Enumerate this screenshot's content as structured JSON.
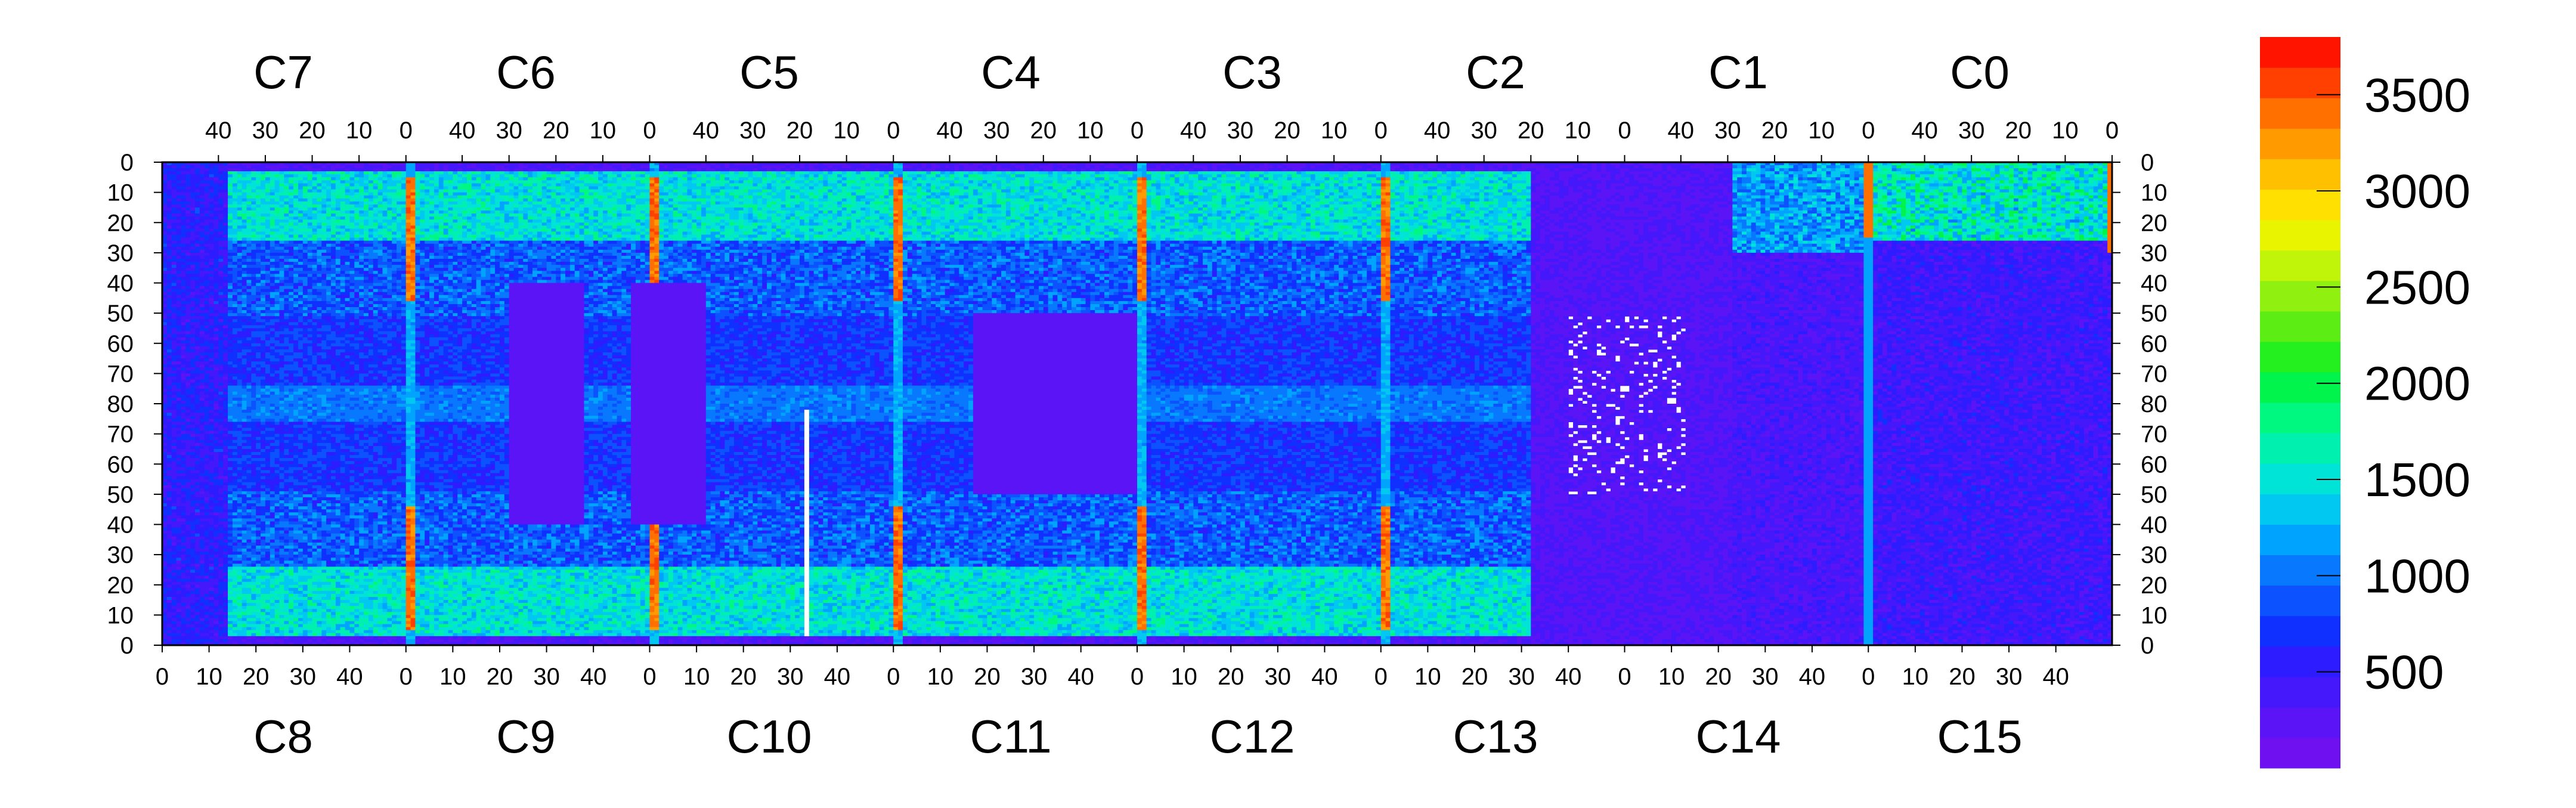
{
  "chart_data": {
    "type": "heatmap",
    "chips_top": [
      "C7",
      "C6",
      "C5",
      "C4",
      "C3",
      "C2",
      "C1",
      "C0"
    ],
    "chips_bottom": [
      "C8",
      "C9",
      "C10",
      "C11",
      "C12",
      "C13",
      "C14",
      "C15"
    ],
    "top_column_ticks": [
      "40",
      "30",
      "20",
      "10",
      "0"
    ],
    "bottom_column_ticks": [
      "0",
      "10",
      "20",
      "30",
      "40"
    ],
    "row_ticks_top_half": [
      "0",
      "10",
      "20",
      "30",
      "40",
      "50",
      "60",
      "70",
      "80"
    ],
    "row_ticks_bottom_half": [
      "70",
      "60",
      "50",
      "40",
      "30",
      "20",
      "10",
      "0"
    ],
    "color_scale": {
      "zmin": 0,
      "zmax": 3800,
      "tick_values": [
        3500,
        3000,
        2500,
        2000,
        1500,
        1000,
        500
      ],
      "tick_labels": [
        "3500",
        "3000",
        "2500",
        "2000",
        "1500",
        "1000",
        "500"
      ],
      "colors": [
        "#6e10f0",
        "#5a14f6",
        "#4418fa",
        "#2c1cff",
        "#1030ff",
        "#0c52ff",
        "#0878ff",
        "#00a4ff",
        "#00c8f0",
        "#00e4d8",
        "#00f0b0",
        "#00f880",
        "#00f44c",
        "#24f020",
        "#5cee14",
        "#90f010",
        "#c0f408",
        "#e8f400",
        "#ffe000",
        "#ffc000",
        "#ff9a00",
        "#ff7000",
        "#ff4000",
        "#ff1400"
      ]
    },
    "typical_values": {
      "dead_background": 230,
      "chip_body_lower": 800,
      "chip_body_upper": 1400,
      "hot_columns": 3400,
      "noisy_region_C13_C14": 250
    }
  }
}
